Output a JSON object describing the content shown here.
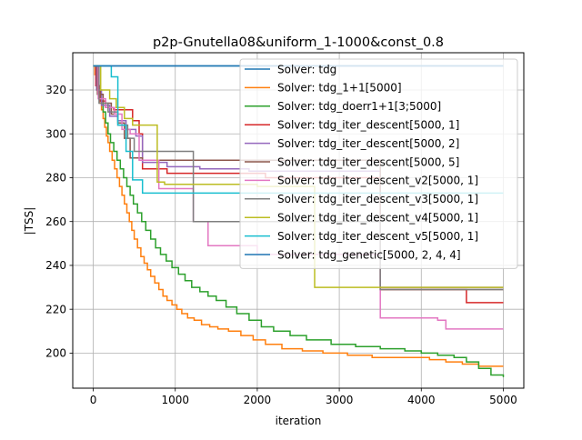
{
  "chart_data": {
    "type": "line",
    "title": "p2p-Gnutella08&uniform_1-1000&const_0.8",
    "xlabel": "iteration",
    "ylabel": "|TSS|",
    "xlim": [
      -250,
      5250
    ],
    "ylim": [
      184,
      337
    ],
    "xticks": [
      0,
      1000,
      2000,
      3000,
      4000,
      5000
    ],
    "yticks": [
      200,
      220,
      240,
      260,
      280,
      300,
      320
    ],
    "grid": true,
    "legend_position": "top-right",
    "series": [
      {
        "name": "Solver: tdg",
        "color": "#1f77b4",
        "step": true,
        "x": [
          0,
          20,
          5000
        ],
        "y": [
          331,
          331,
          331
        ]
      },
      {
        "name": "Solver: tdg_1+1[5000]",
        "color": "#ff7f0e",
        "step": true,
        "x": [
          0,
          20,
          40,
          60,
          80,
          100,
          120,
          140,
          160,
          180,
          200,
          230,
          260,
          290,
          320,
          350,
          380,
          410,
          440,
          470,
          500,
          540,
          580,
          620,
          660,
          700,
          750,
          800,
          850,
          900,
          960,
          1020,
          1080,
          1150,
          1230,
          1320,
          1420,
          1520,
          1650,
          1800,
          1950,
          2100,
          2300,
          2550,
          2800,
          3100,
          3400,
          3800,
          4100,
          4300,
          4500,
          4700,
          5000
        ],
        "y": [
          331,
          327,
          322,
          318,
          314,
          311,
          307,
          303,
          299,
          296,
          292,
          288,
          284,
          280,
          276,
          272,
          268,
          264,
          260,
          256,
          252,
          248,
          244,
          241,
          238,
          235,
          232,
          229,
          226,
          224,
          222,
          220,
          218,
          216,
          215,
          213,
          212,
          211,
          210,
          208,
          206,
          204,
          202,
          201,
          200,
          199,
          198,
          198,
          197,
          196,
          195,
          194,
          194
        ]
      },
      {
        "name": "Solver: tdg_doerr1+1[3;5000]",
        "color": "#2ca02c",
        "step": true,
        "x": [
          0,
          30,
          60,
          90,
          120,
          150,
          180,
          210,
          250,
          290,
          330,
          370,
          410,
          450,
          490,
          540,
          590,
          640,
          700,
          760,
          820,
          890,
          960,
          1040,
          1120,
          1200,
          1300,
          1400,
          1500,
          1620,
          1750,
          1900,
          2050,
          2200,
          2400,
          2600,
          2900,
          3200,
          3500,
          3800,
          4000,
          4200,
          4400,
          4550,
          4700,
          4850,
          5000
        ],
        "y": [
          331,
          325,
          320,
          315,
          310,
          305,
          300,
          296,
          292,
          288,
          284,
          280,
          276,
          272,
          268,
          264,
          260,
          256,
          252,
          248,
          245,
          242,
          239,
          236,
          233,
          230,
          228,
          226,
          224,
          221,
          218,
          215,
          212,
          210,
          208,
          206,
          204,
          203,
          202,
          201,
          200,
          199,
          198,
          196,
          193,
          190,
          189
        ]
      },
      {
        "name": "Solver: tdg_iter_descent[5000, 1]",
        "color": "#d62728",
        "step": true,
        "x": [
          0,
          30,
          80,
          150,
          250,
          350,
          480,
          560,
          600,
          900,
          1200,
          2100,
          3500,
          4550,
          5000
        ],
        "y": [
          331,
          322,
          315,
          312,
          311,
          311,
          306,
          300,
          284,
          282,
          282,
          280,
          229,
          223,
          223
        ]
      },
      {
        "name": "Solver: tdg_iter_descent[5000, 2]",
        "color": "#9467bd",
        "step": true,
        "x": [
          0,
          40,
          100,
          200,
          300,
          400,
          520,
          600,
          900,
          1300,
          1900,
          2300,
          3500,
          5000
        ],
        "y": [
          331,
          320,
          313,
          308,
          306,
          302,
          299,
          287,
          285,
          284,
          283,
          283,
          230,
          230
        ]
      },
      {
        "name": "Solver: tdg_iter_descent[5000, 5]",
        "color": "#8c564b",
        "step": true,
        "x": [
          0,
          50,
          120,
          220,
          300,
          380,
          450,
          600,
          1000,
          1500,
          2000,
          2600,
          3500,
          5000
        ],
        "y": [
          331,
          318,
          314,
          309,
          305,
          298,
          289,
          288,
          288,
          288,
          288,
          288,
          229,
          229
        ]
      },
      {
        "name": "Solver: tdg_iter_descent_v2[5000, 1]",
        "color": "#e377c2",
        "step": true,
        "x": [
          0,
          60,
          150,
          260,
          350,
          450,
          560,
          800,
          1220,
          1400,
          2000,
          3500,
          4200,
          4300,
          5000
        ],
        "y": [
          331,
          316,
          312,
          309,
          302,
          300,
          288,
          275,
          260,
          249,
          245,
          216,
          215,
          211,
          211
        ]
      },
      {
        "name": "Solver: tdg_iter_descent_v3[5000, 1]",
        "color": "#7f7f7f",
        "step": true,
        "x": [
          0,
          70,
          180,
          300,
          420,
          500,
          700,
          1220,
          1600,
          2000,
          2600,
          3500,
          5000
        ],
        "y": [
          331,
          314,
          310,
          304,
          298,
          292,
          292,
          260,
          260,
          260,
          260,
          229,
          229
        ]
      },
      {
        "name": "Solver: tdg_iter_descent_v4[5000, 1]",
        "color": "#bcbd22",
        "step": true,
        "x": [
          0,
          90,
          200,
          280,
          380,
          480,
          620,
          780,
          870,
          1500,
          2000,
          2700,
          5000
        ],
        "y": [
          331,
          320,
          316,
          312,
          307,
          304,
          304,
          278,
          277,
          277,
          276,
          230,
          230
        ]
      },
      {
        "name": "Solver: tdg_iter_descent_v5[5000, 1]",
        "color": "#17becf",
        "step": true,
        "x": [
          0,
          100,
          220,
          300,
          400,
          480,
          600,
          1000,
          1500,
          1900,
          2400,
          3500,
          5000
        ],
        "y": [
          331,
          331,
          326,
          304,
          292,
          279,
          273,
          273,
          273,
          273,
          273,
          273,
          273
        ]
      },
      {
        "name": "Solver: tdg_genetic[5000, 2, 4, 4]",
        "color": "#1f77b4",
        "step": true,
        "x": [
          0,
          20,
          5000
        ],
        "y": [
          331,
          331,
          331
        ]
      }
    ]
  }
}
